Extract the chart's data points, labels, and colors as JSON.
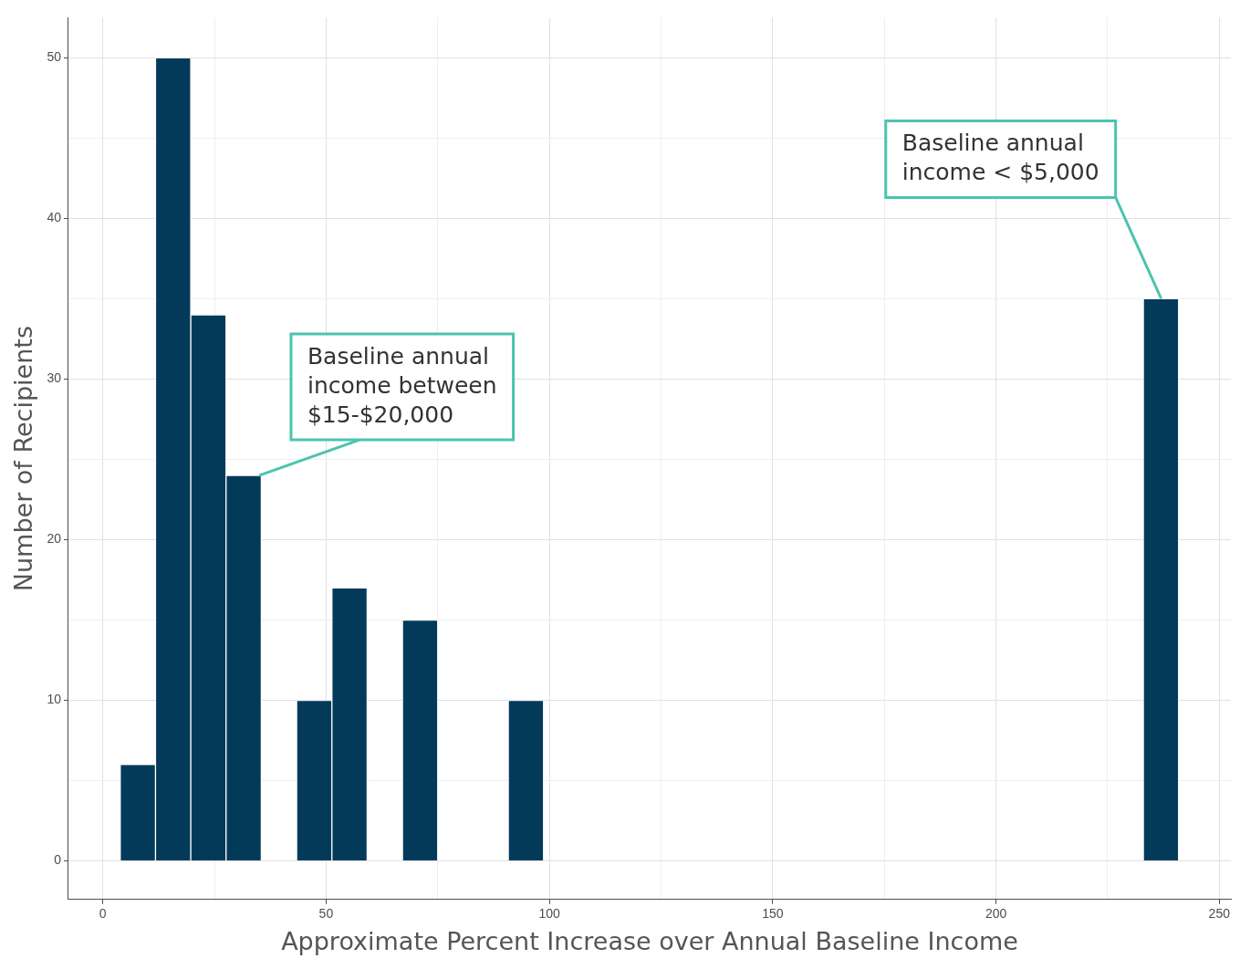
{
  "chart_data": {
    "type": "histogram",
    "xlabel": "Approximate Percent Increase over Annual Baseline Income",
    "ylabel": "Number of Recipients",
    "bins": [
      3.9,
      11.8,
      19.7,
      27.6,
      35.5,
      43.4,
      51.3,
      59.2,
      67.1,
      75.0,
      82.9,
      90.8,
      98.7,
      106.6,
      114.5,
      122.4,
      130.3,
      138.2,
      146.1,
      154.0,
      161.9,
      169.8,
      177.7,
      185.6,
      193.5,
      201.4,
      209.3,
      217.2,
      225.1,
      233.0,
      240.9
    ],
    "values": [
      6,
      50,
      34,
      24,
      0,
      10,
      17,
      0,
      15,
      0,
      0,
      10,
      0,
      0,
      0,
      0,
      0,
      0,
      0,
      0,
      0,
      0,
      0,
      0,
      0,
      0,
      0,
      0,
      0,
      35
    ],
    "color": "#033a5a",
    "xlim": [
      -7.7,
      252.6
    ],
    "xticks": [
      0,
      {
        "value": 25,
        "label": null
      },
      50,
      {
        "value": 75,
        "label": null
      },
      100,
      {
        "value": 125,
        "label": null
      },
      150,
      {
        "value": 175,
        "label": null
      },
      200,
      {
        "value": 225,
        "label": null
      },
      250
    ],
    "ylim": [
      -2.4,
      52.5
    ],
    "yticks": [
      0,
      {
        "value": 5,
        "label": null
      },
      10,
      {
        "value": 15,
        "label": null
      },
      20,
      {
        "value": 25,
        "label": null
      },
      30,
      {
        "value": 35,
        "label": null
      },
      40,
      {
        "value": 45,
        "label": null
      },
      50
    ],
    "grid": true,
    "annotations": [
      {
        "text": "Baseline annual income between $15-$20,000",
        "x": 35,
        "y": 24
      },
      {
        "text": "Baseline annual income < $5,000",
        "x": 237,
        "y": 35
      }
    ]
  }
}
